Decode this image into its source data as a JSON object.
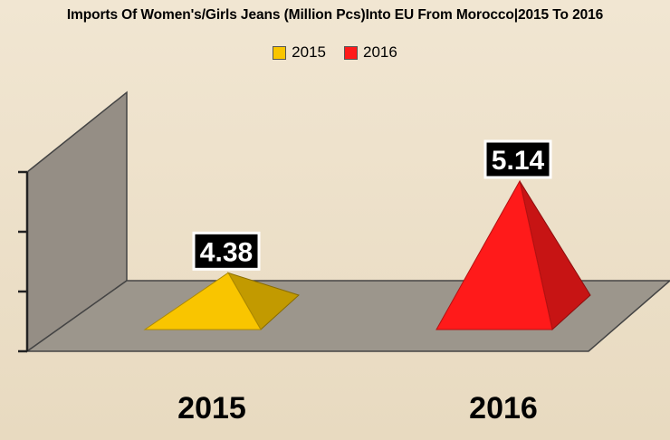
{
  "chart_data": {
    "type": "bar",
    "bar_shape": "pyramid-3d",
    "title": "Imports Of Women's/Girls Jeans (Million Pcs)Into EU From Morocco|2015 To 2016",
    "categories": [
      "2015",
      "2016"
    ],
    "series": [
      {
        "name": "2015",
        "values": [
          4.38,
          null
        ],
        "color": "#f9c500"
      },
      {
        "name": "2016",
        "values": [
          null,
          5.14
        ],
        "color": "#ff1a1a"
      }
    ],
    "data_labels": [
      "4.38",
      "5.14"
    ],
    "ylim": [
      4.0,
      5.2
    ],
    "legend_position": "top",
    "colors": {
      "background": "#ede0c8",
      "wall": "#958e85",
      "floor": "#9c968c",
      "label_box": "#000000",
      "label_text": "#ffffff"
    }
  }
}
